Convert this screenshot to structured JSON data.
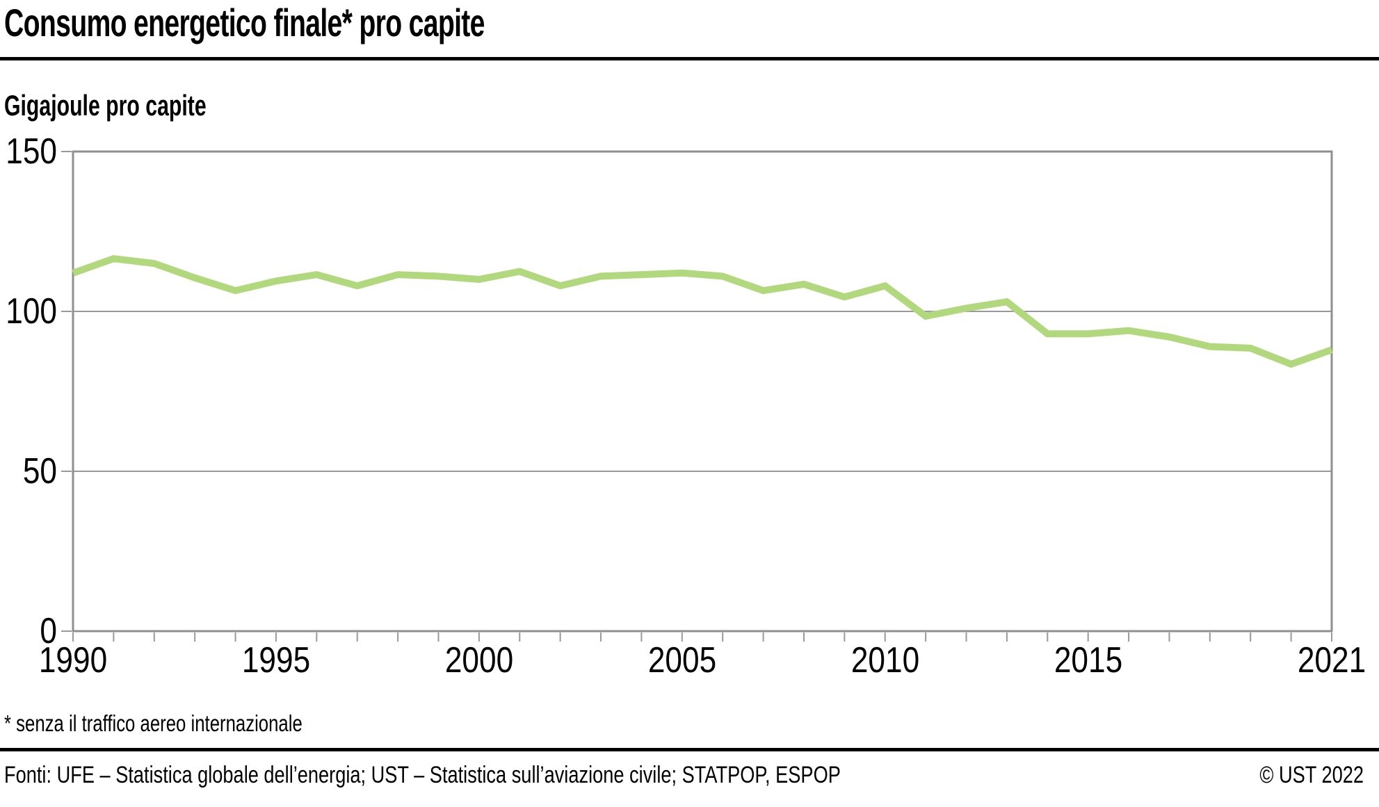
{
  "title": "Consumo energetico finale* pro capite",
  "subtitle": "Gigajoule pro capite",
  "footnote": "* senza il traffico aereo internazionale",
  "footer": {
    "sources": "Fonti: UFE – Statistica globale dell’energia; UST – Statistica sull’aviazione civile; STATPOP, ESPOP",
    "copyright": "© UST 2022"
  },
  "colors": {
    "line": "#b2d87e",
    "grid": "#999999",
    "frame": "#8f8f8f",
    "text": "#000000"
  },
  "chart_data": {
    "type": "line",
    "title": "Consumo energetico finale* pro capite",
    "xlabel": "",
    "ylabel": "Gigajoule pro capite",
    "xlim": [
      1990,
      2021
    ],
    "ylim": [
      0,
      150
    ],
    "x_ticks": [
      1990,
      1995,
      2000,
      2005,
      2010,
      2015,
      2021
    ],
    "y_ticks": [
      0,
      50,
      100,
      150
    ],
    "grid": true,
    "legend_position": "none",
    "x": [
      1990,
      1991,
      1992,
      1993,
      1994,
      1995,
      1996,
      1997,
      1998,
      1999,
      2000,
      2001,
      2002,
      2003,
      2004,
      2005,
      2006,
      2007,
      2008,
      2009,
      2010,
      2011,
      2012,
      2013,
      2014,
      2015,
      2016,
      2017,
      2018,
      2019,
      2020,
      2021
    ],
    "series": [
      {
        "name": "Consumo energetico finale pro capite (senza il traffico aereo internazionale)",
        "color": "#b2d87e",
        "values": [
          112,
          116.5,
          115,
          110.5,
          106.5,
          109.5,
          111.5,
          108,
          111.5,
          111,
          110,
          112.5,
          108,
          111,
          111.5,
          112,
          111,
          106.5,
          108.5,
          104.5,
          108,
          98.5,
          101,
          103,
          93,
          93,
          94,
          92,
          89,
          88.5,
          83.5,
          88
        ]
      }
    ]
  }
}
